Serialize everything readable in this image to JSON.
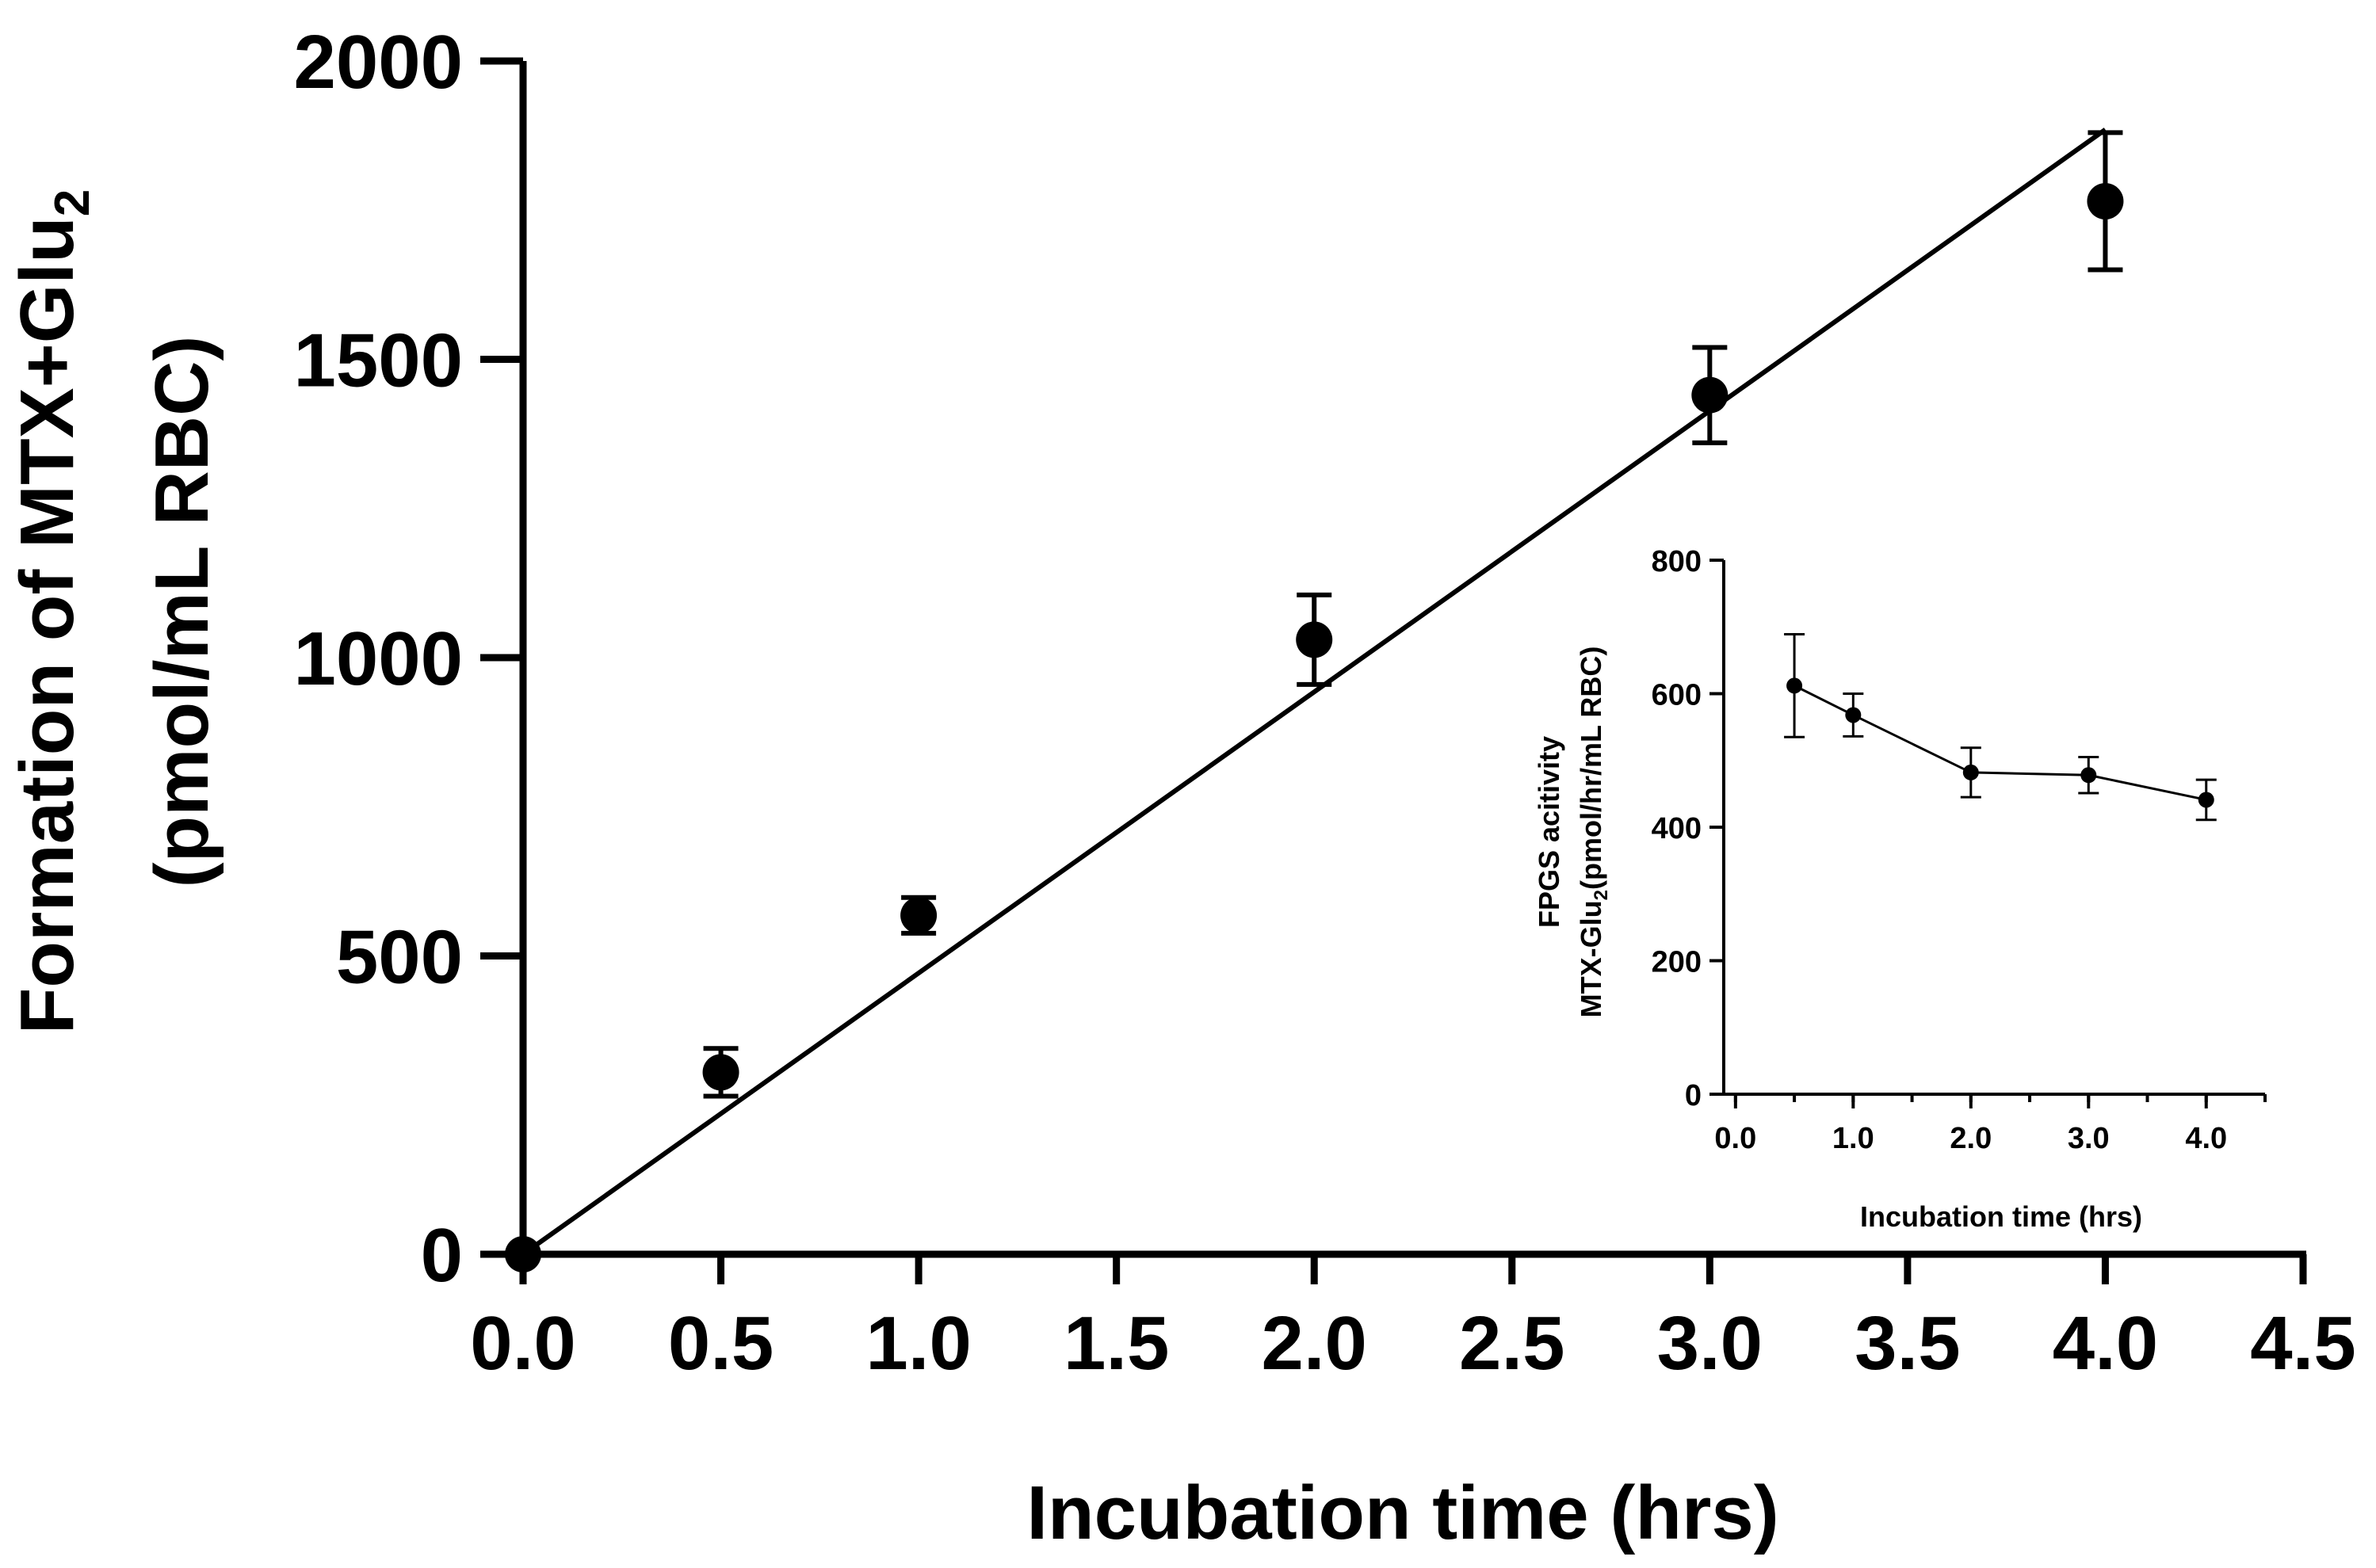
{
  "chart_data": [
    {
      "id": "main",
      "type": "scatter",
      "title": "",
      "xlabel": "Incubation time (hrs)",
      "ylabel_line1_prefix": "Formation of MTX+Glu",
      "ylabel_line1_subscript": "2",
      "ylabel_line2": "(pmol/mL RBC)",
      "xlim": [
        0,
        4.5
      ],
      "ylim": [
        0,
        2000
      ],
      "xticks": [
        0,
        0.5,
        1.0,
        1.5,
        2.0,
        2.5,
        3.0,
        3.5,
        4.0,
        4.5
      ],
      "xtick_labels": [
        "0.0",
        "0.5",
        "1.0",
        "1.5",
        "2.0",
        "2.5",
        "3.0",
        "3.5",
        "4.0",
        "4.5"
      ],
      "yticks": [
        0,
        500,
        1000,
        1500,
        2000
      ],
      "ytick_labels": [
        "0",
        "500",
        "1000",
        "1500",
        "2000"
      ],
      "grid": false,
      "series": [
        {
          "name": "MTX+Glu2 formation",
          "x": [
            0,
            0.5,
            1.0,
            2.0,
            3.0,
            4.0
          ],
          "y": [
            0,
            305,
            568,
            1030,
            1440,
            1765
          ],
          "err": [
            0,
            40,
            30,
            75,
            80,
            115
          ]
        }
      ],
      "fit_line": {
        "x": [
          0,
          4.0
        ],
        "y": [
          0,
          1885
        ]
      }
    },
    {
      "id": "inset",
      "type": "line",
      "title": "",
      "xlabel": "Incubation time (hrs)",
      "ylabel_line1": "FPGS acitivity",
      "ylabel_line2_prefix": "MTX-Glu",
      "ylabel_line2_subscript": "2",
      "ylabel_line2_suffix": "(pmol/hr/mL RBC)",
      "xlim": [
        -0.1,
        4.5
      ],
      "ylim": [
        0,
        800
      ],
      "xticks": [
        0,
        1.0,
        2.0,
        3.0,
        4.0
      ],
      "xtick_labels": [
        "0.0",
        "1.0",
        "2.0",
        "3.0",
        "4.0"
      ],
      "yticks": [
        0,
        200,
        400,
        600,
        800
      ],
      "ytick_labels": [
        "0",
        "200",
        "400",
        "600",
        "800"
      ],
      "grid": false,
      "series": [
        {
          "name": "FPGS activity",
          "x": [
            0.5,
            1.0,
            2.0,
            3.0,
            4.0
          ],
          "y": [
            612,
            568,
            482,
            478,
            441
          ],
          "err": [
            77,
            32,
            37,
            27,
            30
          ]
        }
      ]
    }
  ]
}
